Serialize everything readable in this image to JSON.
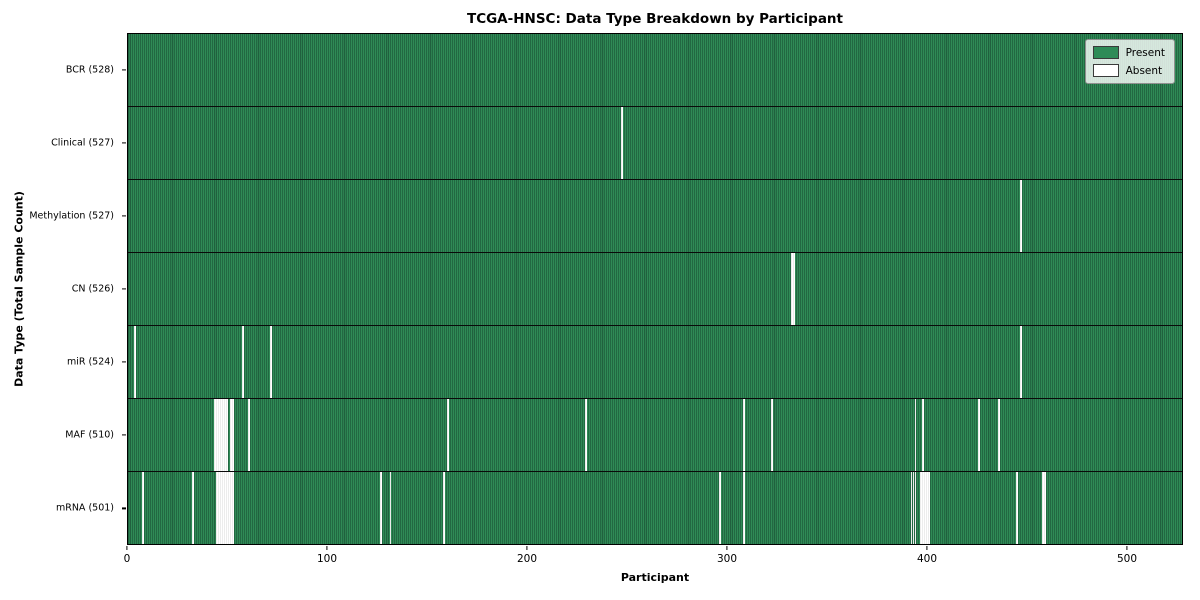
{
  "chart_data": {
    "type": "heatmap",
    "title": "TCGA-HNSC: Data Type Breakdown by Participant",
    "xlabel": "Participant",
    "ylabel": "Data Type (Total Sample Count)",
    "x_ticks": [
      0,
      100,
      200,
      300,
      400,
      500
    ],
    "x_range": [
      0,
      528
    ],
    "total_participants": 528,
    "grid": false,
    "legend_position": "upper right",
    "colors": {
      "present": "#2e8b57",
      "present_edge": "#16452e",
      "absent": "#ffffff"
    },
    "legend": [
      {
        "label": "Present",
        "color": "#2e8b57"
      },
      {
        "label": "Absent",
        "color": "#ffffff"
      }
    ],
    "rows": [
      {
        "label": "BCR (528)",
        "data_type": "BCR",
        "present_count": 528,
        "absent_count": 0,
        "absent_participants": []
      },
      {
        "label": "Clinical (527)",
        "data_type": "Clinical",
        "present_count": 527,
        "absent_count": 1,
        "absent_participants": [
          247
        ]
      },
      {
        "label": "Methylation (527)",
        "data_type": "Methylation",
        "present_count": 527,
        "absent_count": 1,
        "absent_participants": [
          447
        ]
      },
      {
        "label": "CN (526)",
        "data_type": "CN",
        "present_count": 526,
        "absent_count": 2,
        "absent_participants": [
          332,
          333
        ]
      },
      {
        "label": "miR (524)",
        "data_type": "miR",
        "present_count": 524,
        "absent_count": 4,
        "absent_participants": [
          3,
          57,
          71,
          447
        ]
      },
      {
        "label": "MAF (510)",
        "data_type": "MAF",
        "present_count": 510,
        "absent_count": 18,
        "absent_participants": [
          43,
          44,
          45,
          46,
          47,
          48,
          49,
          51,
          52,
          60,
          160,
          229,
          308,
          322,
          394,
          398,
          426,
          436
        ]
      },
      {
        "label": "mRNA (501)",
        "data_type": "mRNA",
        "present_count": 501,
        "absent_count": 27,
        "absent_participants": [
          7,
          32,
          44,
          45,
          46,
          47,
          48,
          49,
          50,
          51,
          52,
          126,
          131,
          158,
          296,
          308,
          392,
          393,
          394,
          397,
          398,
          399,
          400,
          401,
          445,
          458,
          459
        ]
      }
    ]
  }
}
